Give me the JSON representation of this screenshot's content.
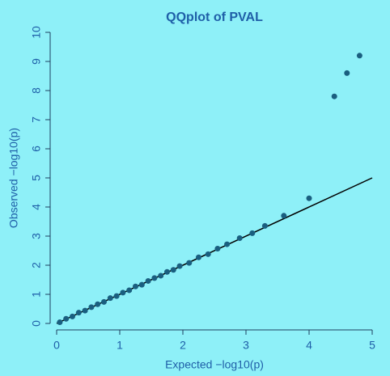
{
  "chart_data": {
    "type": "scatter",
    "title": "QQplot of PVAL",
    "x_label": "Expected −log10(p)",
    "y_label": "Observed −log10(p)",
    "x": [
      0.05,
      0.15,
      0.25,
      0.35,
      0.45,
      0.55,
      0.65,
      0.75,
      0.85,
      0.95,
      1.05,
      1.15,
      1.25,
      1.35,
      1.45,
      1.55,
      1.65,
      1.75,
      1.85,
      1.95,
      2.1,
      2.25,
      2.4,
      2.55,
      2.7,
      2.9,
      3.1,
      3.3,
      3.6,
      4.0,
      4.4,
      4.6,
      4.8
    ],
    "y": [
      0.04,
      0.16,
      0.24,
      0.37,
      0.44,
      0.56,
      0.66,
      0.74,
      0.87,
      0.94,
      1.06,
      1.14,
      1.27,
      1.33,
      1.46,
      1.56,
      1.64,
      1.77,
      1.84,
      1.97,
      2.08,
      2.27,
      2.38,
      2.57,
      2.72,
      2.93,
      3.1,
      3.35,
      3.7,
      4.3,
      7.8,
      8.6,
      9.2
    ],
    "color": "#1a5f80",
    "xlim": [
      0,
      5
    ],
    "xticks": [
      0,
      1,
      2,
      3,
      4,
      5
    ],
    "ylim": [
      0,
      10
    ],
    "yticks": [
      0,
      1,
      2,
      3,
      4,
      5,
      6,
      7,
      8,
      9,
      10
    ]
  }
}
